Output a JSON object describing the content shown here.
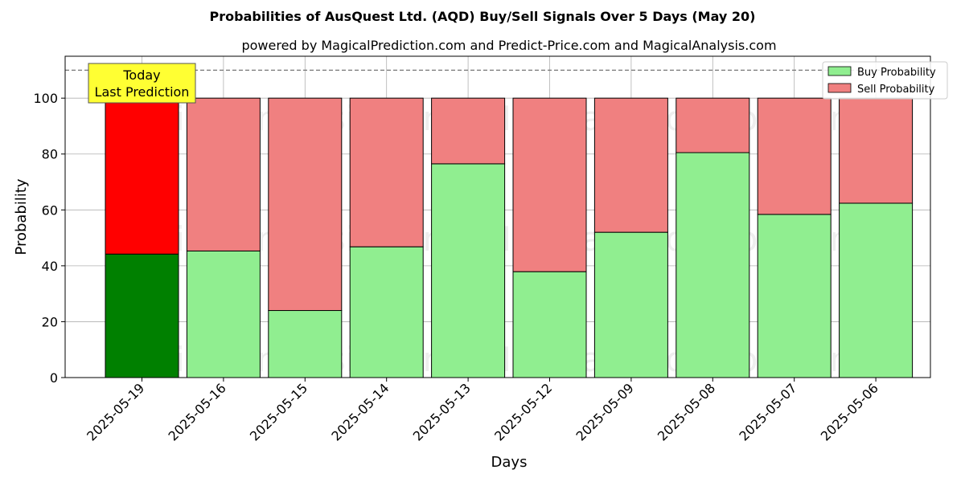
{
  "chart_data": {
    "type": "bar",
    "stacked": true,
    "title": "Probabilities of AusQuest Ltd. (AQD) Buy/Sell Signals Over 5 Days (May 20)",
    "subtitle": "powered by MagicalPrediction.com and Predict-Price.com and MagicalAnalysis.com",
    "xlabel": "Days",
    "ylabel": "Probability",
    "ylim": [
      0,
      115
    ],
    "yticks": [
      0,
      20,
      40,
      60,
      80,
      100
    ],
    "grid": true,
    "legend_position": "top-right",
    "categories": [
      "2025-05-19",
      "2025-05-16",
      "2025-05-15",
      "2025-05-14",
      "2025-05-13",
      "2025-05-12",
      "2025-05-09",
      "2025-05-08",
      "2025-05-07",
      "2025-05-06"
    ],
    "series": [
      {
        "name": "Buy Probability",
        "values": [
          44.2,
          45.3,
          24.0,
          46.8,
          76.5,
          37.9,
          52.0,
          80.5,
          58.4,
          62.4
        ],
        "color": "#90ee90",
        "highlight_color": "#008000"
      },
      {
        "name": "Sell Probability",
        "values": [
          55.8,
          54.7,
          76.0,
          53.2,
          23.5,
          62.1,
          48.0,
          19.5,
          41.6,
          37.6
        ],
        "color": "#f08080",
        "highlight_color": "#ff0000"
      }
    ],
    "highlight_index": 0,
    "reference_line": {
      "y": 110,
      "style": "dashed"
    },
    "annotation": {
      "lines": [
        "Today",
        "Last Prediction"
      ],
      "color": "#ffff33"
    },
    "watermarks": [
      "MagicalAnalysis.com",
      "MagicalPrediction.com"
    ]
  }
}
